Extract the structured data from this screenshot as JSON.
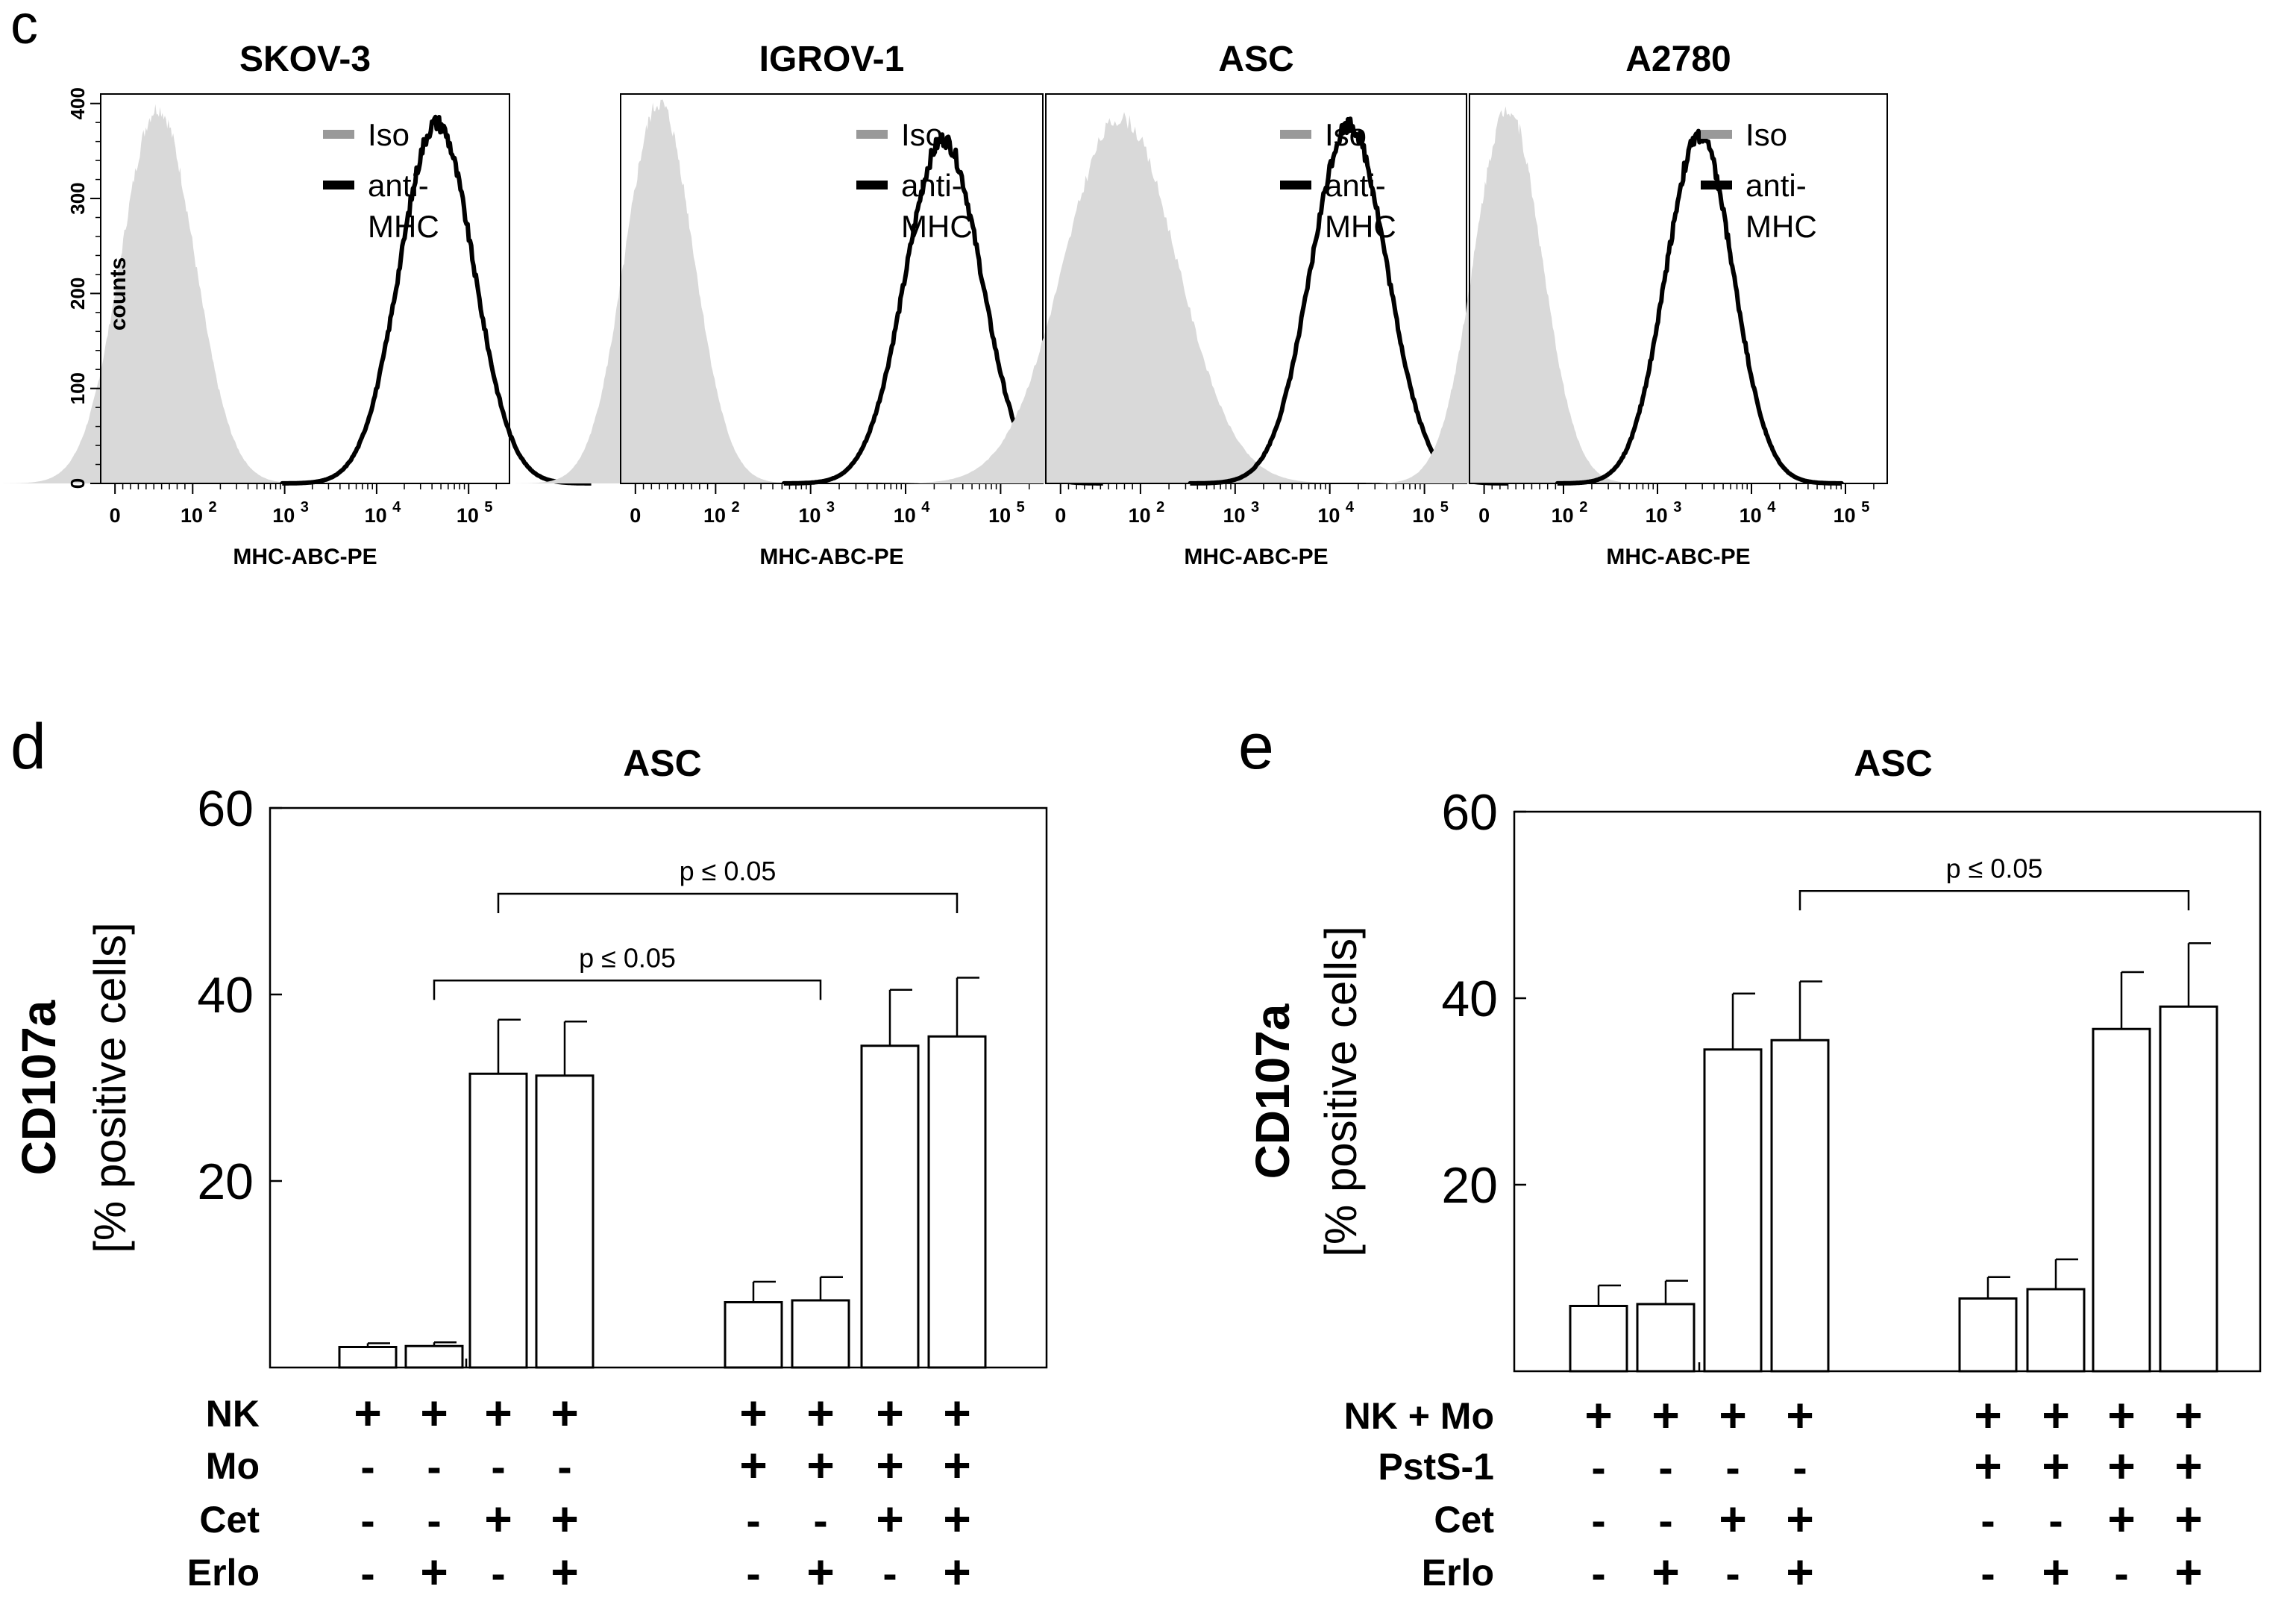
{
  "panel_labels": {
    "c": "c",
    "d": "d",
    "e": "e"
  },
  "chart_data": [
    {
      "type": "histogram",
      "panel": "c",
      "ylabel": "counts",
      "xlabel": "MHC-ABC-PE",
      "x_scale": "biexponential",
      "x_ticks": [
        "0",
        "10^2",
        "10^3",
        "10^4",
        "10^5"
      ],
      "y_ticks": [
        0,
        100,
        200,
        300,
        400
      ],
      "ylim": [
        0,
        410
      ],
      "legend": {
        "position": "top-right",
        "entries": [
          {
            "label": "Iso",
            "color": "#999999"
          },
          {
            "label": "anti-MHC",
            "label_lines": [
              "anti-",
              "MHC"
            ],
            "color": "#000000"
          }
        ]
      },
      "iso_fill_color": "#d9d9d9",
      "panels": [
        {
          "title": "SKOV-3",
          "iso": {
            "mode": 55,
            "peak": 395,
            "width": 0.2
          },
          "anti": {
            "mode": 45000,
            "peak": 380,
            "width": 0.2
          }
        },
        {
          "title": "IGROV-1",
          "iso": {
            "mode": 30,
            "peak": 400,
            "width": 0.18
          },
          "anti": {
            "mode": 25000,
            "peak": 362,
            "width": 0.2
          }
        },
        {
          "title": "ASC",
          "iso": {
            "mode": 75,
            "peak": 385,
            "width": 0.3
          },
          "anti": {
            "mode": 16000,
            "peak": 378,
            "width": 0.2
          }
        },
        {
          "title": "A2780",
          "iso": {
            "mode": 30,
            "peak": 395,
            "width": 0.18
          },
          "anti": {
            "mode": 2800,
            "peak": 366,
            "width": 0.18
          }
        }
      ]
    },
    {
      "type": "bar",
      "panel": "d",
      "title": "ASC",
      "ylabel_lines": [
        "CD107a",
        "[% positive cells]"
      ],
      "ylim": [
        0,
        60
      ],
      "y_ticks": [
        20,
        40,
        60
      ],
      "bar_groups": [
        {
          "values": [
            2.2,
            2.3,
            31.5,
            31.3
          ],
          "errors": [
            0.4,
            0.4,
            5.8,
            5.8
          ]
        },
        {
          "values": [
            7.0,
            7.2,
            34.5,
            35.5
          ],
          "errors": [
            2.2,
            2.5,
            6.0,
            6.3
          ]
        }
      ],
      "conditions": [
        {
          "label": "NK",
          "marks": [
            "+",
            "+",
            "+",
            "+",
            "+",
            "+",
            "+",
            "+"
          ]
        },
        {
          "label": "Mo",
          "marks": [
            "-",
            "-",
            "-",
            "-",
            "+",
            "+",
            "+",
            "+"
          ]
        },
        {
          "label": "Cet",
          "marks": [
            "-",
            "-",
            "+",
            "+",
            "-",
            "-",
            "+",
            "+"
          ]
        },
        {
          "label": "Erlo",
          "marks": [
            "-",
            "+",
            "-",
            "+",
            "-",
            "+",
            "-",
            "+"
          ]
        }
      ],
      "significance": [
        {
          "text": "p ≤ 0.05",
          "from_bar": 3,
          "to_bar": 8,
          "y": 50.8
        },
        {
          "text": "p ≤ 0.05",
          "from_bar": 2,
          "to_bar": 6,
          "y": 41.5
        }
      ]
    },
    {
      "type": "bar",
      "panel": "e",
      "title": "ASC",
      "ylabel_lines": [
        "CD107a",
        "[% positive cells]"
      ],
      "ylim": [
        0,
        60
      ],
      "y_ticks": [
        20,
        40,
        60
      ],
      "bar_groups": [
        {
          "values": [
            7.0,
            7.2,
            34.5,
            35.5
          ],
          "errors": [
            2.2,
            2.5,
            6.0,
            6.3
          ]
        },
        {
          "values": [
            7.8,
            8.8,
            36.7,
            39.1
          ],
          "errors": [
            2.3,
            3.2,
            6.1,
            6.8
          ]
        }
      ],
      "conditions": [
        {
          "label": "NK + Mo",
          "marks": [
            "+",
            "+",
            "+",
            "+",
            "+",
            "+",
            "+",
            "+"
          ]
        },
        {
          "label": "PstS-1",
          "marks": [
            "-",
            "-",
            "-",
            "-",
            "+",
            "+",
            "+",
            "+"
          ]
        },
        {
          "label": "Cet",
          "marks": [
            "-",
            "-",
            "+",
            "+",
            "-",
            "-",
            "+",
            "+"
          ]
        },
        {
          "label": "Erlo",
          "marks": [
            "-",
            "+",
            "-",
            "+",
            "-",
            "+",
            "-",
            "+"
          ]
        }
      ],
      "significance": [
        {
          "text": "p ≤ 0.05",
          "from_bar": 4,
          "to_bar": 8,
          "y": 51.5
        }
      ]
    }
  ]
}
